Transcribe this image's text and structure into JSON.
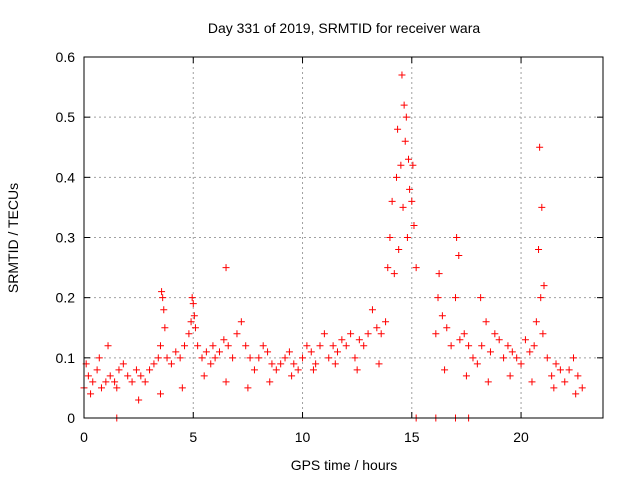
{
  "chart_data": {
    "type": "scatter",
    "title": "Day 331 of 2019, SRMTID for receiver wara",
    "xlabel": "GPS time / hours",
    "ylabel": "SRMTID / TECUs",
    "xlim": [
      0,
      23.75
    ],
    "ylim": [
      0,
      0.6
    ],
    "xticks": [
      0,
      5,
      10,
      15,
      20
    ],
    "yticks": [
      0,
      0.1,
      0.2,
      0.3,
      0.4,
      0.5,
      0.6
    ],
    "grid": true,
    "marker": "plus",
    "color": "#ff0000",
    "series": [
      {
        "name": "SRMTID",
        "x": [
          0.0,
          0.2,
          0.4,
          0.6,
          0.8,
          1.0,
          1.2,
          1.4,
          1.5,
          1.6,
          1.8,
          2.0,
          2.2,
          2.4,
          2.6,
          2.8,
          3.0,
          3.2,
          3.4,
          3.5,
          3.6,
          3.7,
          3.8,
          4.0,
          4.2,
          4.4,
          4.6,
          4.8,
          4.9,
          5.0,
          5.1,
          5.2,
          5.4,
          5.6,
          5.8,
          5.9,
          6.0,
          6.2,
          6.4,
          6.6,
          6.8,
          7.0,
          7.2,
          7.4,
          7.6,
          7.8,
          8.0,
          8.2,
          8.4,
          8.6,
          8.8,
          9.0,
          9.2,
          9.4,
          9.6,
          9.8,
          10.0,
          10.2,
          10.4,
          10.6,
          10.8,
          11.0,
          11.2,
          11.4,
          11.6,
          11.8,
          12.0,
          12.2,
          12.4,
          12.6,
          12.8,
          13.0,
          13.2,
          13.4,
          13.6,
          13.8,
          13.9,
          14.0,
          14.1,
          14.2,
          14.3,
          14.4,
          14.5,
          14.6,
          14.7,
          14.8,
          14.9,
          15.0,
          15.1,
          15.2,
          16.1,
          16.2,
          16.4,
          16.6,
          16.8,
          17.0,
          17.2,
          17.4,
          17.6,
          17.8,
          18.0,
          18.2,
          18.4,
          18.6,
          18.8,
          19.0,
          19.2,
          19.4,
          19.6,
          19.8,
          20.0,
          20.2,
          20.4,
          20.6,
          20.7,
          20.8,
          20.9,
          21.0,
          21.2,
          21.4,
          21.6,
          21.8,
          22.0,
          22.2,
          22.4,
          22.6,
          22.8,
          0.1,
          0.3,
          0.7,
          1.1,
          3.55,
          3.65,
          4.95,
          5.05,
          6.5,
          14.35,
          14.55,
          14.65,
          14.75,
          14.85,
          15.05,
          16.25,
          17.05,
          17.15,
          18.15,
          20.85,
          20.95,
          21.05,
          15.2,
          16.1,
          17.0,
          17.6,
          1.5,
          2.5,
          3.5,
          4.5,
          5.5,
          6.5,
          7.5,
          8.5,
          9.5,
          10.5,
          11.5,
          12.5,
          13.5,
          16.5,
          17.5,
          18.5,
          19.5,
          20.5,
          21.5,
          22.5
        ],
        "y": [
          0.05,
          0.07,
          0.06,
          0.08,
          0.05,
          0.06,
          0.07,
          0.06,
          0.05,
          0.08,
          0.09,
          0.07,
          0.06,
          0.08,
          0.07,
          0.06,
          0.08,
          0.09,
          0.1,
          0.12,
          0.2,
          0.15,
          0.1,
          0.09,
          0.11,
          0.1,
          0.12,
          0.14,
          0.16,
          0.19,
          0.15,
          0.12,
          0.1,
          0.11,
          0.09,
          0.12,
          0.1,
          0.11,
          0.13,
          0.12,
          0.1,
          0.14,
          0.16,
          0.12,
          0.1,
          0.08,
          0.1,
          0.12,
          0.11,
          0.09,
          0.08,
          0.09,
          0.1,
          0.11,
          0.09,
          0.08,
          0.1,
          0.12,
          0.11,
          0.09,
          0.12,
          0.14,
          0.1,
          0.12,
          0.11,
          0.13,
          0.12,
          0.14,
          0.1,
          0.13,
          0.12,
          0.14,
          0.18,
          0.15,
          0.14,
          0.16,
          0.25,
          0.3,
          0.36,
          0.24,
          0.4,
          0.28,
          0.42,
          0.35,
          0.46,
          0.3,
          0.38,
          0.36,
          0.32,
          0.25,
          0.14,
          0.2,
          0.17,
          0.15,
          0.12,
          0.2,
          0.13,
          0.14,
          0.12,
          0.1,
          0.09,
          0.12,
          0.16,
          0.11,
          0.14,
          0.13,
          0.1,
          0.12,
          0.11,
          0.1,
          0.09,
          0.13,
          0.11,
          0.12,
          0.16,
          0.28,
          0.2,
          0.14,
          0.1,
          0.07,
          0.09,
          0.08,
          0.06,
          0.08,
          0.1,
          0.07,
          0.05,
          0.09,
          0.04,
          0.1,
          0.12,
          0.21,
          0.18,
          0.2,
          0.17,
          0.25,
          0.48,
          0.57,
          0.52,
          0.5,
          0.43,
          0.42,
          0.24,
          0.3,
          0.27,
          0.2,
          0.45,
          0.35,
          0.22,
          0.0,
          0.0,
          0.0,
          0.0,
          0.0,
          0.03,
          0.04,
          0.05,
          0.07,
          0.06,
          0.05,
          0.06,
          0.07,
          0.08,
          0.09,
          0.08,
          0.09,
          0.08,
          0.07,
          0.06,
          0.07,
          0.06,
          0.05,
          0.04
        ]
      }
    ]
  }
}
